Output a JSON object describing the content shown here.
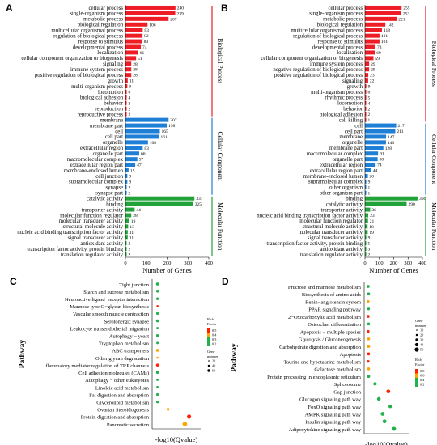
{
  "chart_data": [
    {
      "panel_letter": "A",
      "type": "bar",
      "orientation": "horizontal",
      "xlabel": "Number of Genes",
      "xlim": [
        0,
        400
      ],
      "xticks": [
        0,
        100,
        200,
        300,
        400
      ],
      "groups": [
        {
          "name": "Biological Process",
          "color": "#ee1c25",
          "categories": [
            "cellular process",
            "single-organism process",
            "metabolic process",
            "biological regulation",
            "multicellular organismal process",
            "regulation of biological process",
            "response to stimulus",
            "developmental process",
            "localization",
            "cellular component organization or biogenesis",
            "signaling",
            "immune system process",
            "positive regulation of biological process",
            "growth",
            "multi-organism process",
            "locomotion",
            "biological adhesion",
            "behavior",
            "reproduction",
            "reproductive process"
          ],
          "values": [
            240,
            239,
            207,
            106,
            83,
            82,
            80,
            74,
            61,
            51,
            28,
            28,
            28,
            11,
            9,
            6,
            4,
            2,
            2,
            2
          ]
        },
        {
          "name": "Cellular Component",
          "color": "#1e7fd7",
          "categories": [
            "membrane",
            "membrane part",
            "cell",
            "cell part",
            "organelle",
            "extracellular region",
            "organelle part",
            "macromolecular complex",
            "extracellular region part",
            "membrane-enclosed lumen",
            "cell junction",
            "supramolecular complex",
            "synapse",
            "synapse part"
          ],
          "values": [
            207,
            198,
            165,
            161,
            108,
            83,
            66,
            57,
            47,
            15,
            9,
            9,
            2,
            2
          ]
        },
        {
          "name": "Molecular Function",
          "color": "#21a33a",
          "categories": [
            "catalytic activity",
            "binding",
            "transporter activity",
            "molecular function regulator",
            "molecular transducer activity",
            "structural molecule activity",
            "nucleic acid binding transcription factor activity",
            "signal transducer activity",
            "antioxidant activity",
            "transcription factor activity, protein binding",
            "translation regulator activity"
          ],
          "values": [
            331,
            325,
            44,
            28,
            19,
            13,
            11,
            11,
            2,
            2,
            2
          ]
        }
      ]
    },
    {
      "panel_letter": "B",
      "type": "bar",
      "orientation": "horizontal",
      "xlabel": "Number of Genes",
      "xlim": [
        0,
        400
      ],
      "xticks": [
        0,
        100,
        200,
        300,
        400
      ],
      "groups": [
        {
          "name": "Biological Process",
          "color": "#ee1c25",
          "categories": [
            "cellular process",
            "single-organism process",
            "metabolic process",
            "biological regulation",
            "multicellular organismal process",
            "regulation of biological process",
            "response to stimulus",
            "developmental process",
            "localization",
            "cellular component organization or biogenesis",
            "immune system process",
            "negative regulation of biological process",
            "positive regulation of biological process",
            "signaling",
            "growth",
            "multi-organism process",
            "rhythmic process",
            "locomotion",
            "behavior",
            "biological adhesion",
            "cell killing"
          ],
          "values": [
            255,
            253,
            221,
            142,
            118,
            101,
            101,
            73,
            69,
            59,
            29,
            29,
            23,
            22,
            9,
            6,
            5,
            4,
            2,
            2,
            1
          ]
        },
        {
          "name": "Cellular Component",
          "color": "#1e7fd7",
          "categories": [
            "cell",
            "cell part",
            "membrane",
            "organelle",
            "membrane part",
            "macromolecular complex",
            "organelle part",
            "extracellular region",
            "extracellular region part",
            "membrane-enclosed lumen",
            "supramolecular complex",
            "other organism",
            "other organism part"
          ],
          "values": [
            217,
            211,
            147,
            146,
            128,
            91,
            88,
            74,
            44,
            20,
            9,
            1,
            1
          ]
        },
        {
          "name": "Molecular Function",
          "color": "#21a33a",
          "categories": [
            "binding",
            "catalytic activity",
            "transporter activity",
            "nucleic acid binding transcription factor activity",
            "molecular function regulator",
            "structural molecule activity",
            "molecular transducer activity",
            "signal transducer activity",
            "transcription factor activity, protein binding",
            "antioxidant activity",
            "translation regulator activity"
          ],
          "values": [
            366,
            290,
            36,
            23,
            21,
            18,
            19,
            9,
            5,
            3,
            2
          ]
        }
      ]
    },
    {
      "panel_letter": "C",
      "type": "scatter",
      "ylabel": "Pathway",
      "xlabel": "-log10(Qvalue)",
      "legend": {
        "rich_factor_title": [
          "Rich",
          "Factor"
        ],
        "rich_factor_ticks": [
          "0.5",
          "0.4",
          "0.3",
          "0.2"
        ],
        "gene_number_title": [
          "Gene",
          "number"
        ],
        "gene_number_ticks": [
          "20",
          "40",
          "60"
        ]
      },
      "color_scale": [
        "#22b14c",
        "#ffa500",
        "#ff2200"
      ],
      "categories": [
        "Tight junction",
        "Starch and sucrose metabolism",
        "Neuroactive ligand−receptor interaction",
        "Mannose type O−glycan biosynthesis",
        "Vascular smooth muscle contraction",
        "Serotonergic synapse",
        "Leukocyte transendothelial migration",
        "Autophagy − yeast",
        "Tryptophan metabolism",
        "ABC transporters",
        "Other glycan degradation",
        "flammatory mediator regulation of TRP channels",
        "Cell adhesion molecules (CAMs)",
        "Autophagy − other eukaryotes",
        "Linoleic acid metabolism",
        "Fat digestion and absorption",
        "Glycerolipid metabolism",
        "Ovarian Steroidogenesis",
        "Protein digestion and absorption",
        "Pancreatic secretion"
      ],
      "points": [
        {
          "q": 0.05,
          "rich": 0.25,
          "genes": 6
        },
        {
          "q": 0.05,
          "rich": 0.3,
          "genes": 4
        },
        {
          "q": 0.05,
          "rich": 0.2,
          "genes": 5
        },
        {
          "q": 0.05,
          "rich": 0.45,
          "genes": 3
        },
        {
          "q": 0.05,
          "rich": 0.25,
          "genes": 5
        },
        {
          "q": 0.05,
          "rich": 0.25,
          "genes": 6
        },
        {
          "q": 0.05,
          "rich": 0.3,
          "genes": 4
        },
        {
          "q": 0.05,
          "rich": 0.3,
          "genes": 5
        },
        {
          "q": 0.05,
          "rich": 0.3,
          "genes": 4
        },
        {
          "q": 0.05,
          "rich": 0.35,
          "genes": 6
        },
        {
          "q": 0.05,
          "rich": 0.4,
          "genes": 3
        },
        {
          "q": 0.05,
          "rich": 0.5,
          "genes": 6
        },
        {
          "q": 0.05,
          "rich": 0.2,
          "genes": 6
        },
        {
          "q": 0.05,
          "rich": 0.25,
          "genes": 4
        },
        {
          "q": 0.05,
          "rich": 0.3,
          "genes": 4
        },
        {
          "q": 0.05,
          "rich": 0.3,
          "genes": 5
        },
        {
          "q": 0.05,
          "rich": 0.3,
          "genes": 5
        },
        {
          "q": 0.3,
          "rich": 0.4,
          "genes": 5
        },
        {
          "q": 0.8,
          "rich": 0.5,
          "genes": 12
        },
        {
          "q": 0.7,
          "rich": 0.4,
          "genes": 14
        }
      ]
    },
    {
      "panel_letter": "D",
      "type": "scatter",
      "ylabel": "Pathway",
      "xlabel": "-log10(Qvalue)",
      "legend": {
        "gene_number_title": [
          "Gene",
          "number"
        ],
        "gene_number_ticks": [
          "10",
          "20",
          "30",
          "40",
          "50"
        ],
        "rich_factor_title": [
          "Rich",
          "Factor"
        ],
        "rich_factor_ticks": [
          "0.8",
          "0.6",
          "0.4",
          "0.2"
        ]
      },
      "color_scale": [
        "#22b14c",
        "#ffa500",
        "#ff2200"
      ],
      "categories": [
        "Fructose and mannose metabolism",
        "Biosynthesis of amino acids",
        "Renin−angiotensin system",
        "PPAR signaling pathway",
        "2−Oxocarboxylic acid metabolism",
        "Osteoclast differentiation",
        "Apoptosis − multiple species",
        "Glycolysis / Gluconeogenesis",
        "Carbohydrate digestion and absorption",
        "Apoptosis",
        "Taurine and hypotaurine metabolism",
        "Galactose metabolism",
        "Protein processing in endoplasmic reticulum",
        "Spliceosome",
        "Gap junction",
        "Glucagon signaling path way",
        "FoxO signaling path way",
        "AMPK signaling path way",
        "Insulin signaling path way",
        "Adipocytokine signaling path way"
      ],
      "points": [
        {
          "q": 0.02,
          "rich": 0.3,
          "genes": 6
        },
        {
          "q": 0.03,
          "rich": 0.25,
          "genes": 6
        },
        {
          "q": 0.02,
          "rich": 0.4,
          "genes": 5
        },
        {
          "q": 0.03,
          "rich": 0.3,
          "genes": 5
        },
        {
          "q": 0.02,
          "rich": 0.45,
          "genes": 6
        },
        {
          "q": 0.03,
          "rich": 0.3,
          "genes": 6
        },
        {
          "q": 0.02,
          "rich": 0.7,
          "genes": 5
        },
        {
          "q": 0.03,
          "rich": 0.4,
          "genes": 6
        },
        {
          "q": 0.03,
          "rich": 0.35,
          "genes": 6
        },
        {
          "q": 0.03,
          "rich": 0.45,
          "genes": 6
        },
        {
          "q": 0.02,
          "rich": 0.55,
          "genes": 5
        },
        {
          "q": 0.03,
          "rich": 0.4,
          "genes": 6
        },
        {
          "q": 0.03,
          "rich": 0.3,
          "genes": 7
        },
        {
          "q": 0.2,
          "rich": 0.25,
          "genes": 8
        },
        {
          "q": 0.55,
          "rich": 0.5,
          "genes": 10
        },
        {
          "q": 0.3,
          "rich": 0.3,
          "genes": 9
        },
        {
          "q": 0.6,
          "rich": 0.3,
          "genes": 9
        },
        {
          "q": 0.4,
          "rich": 0.3,
          "genes": 10
        },
        {
          "q": 0.45,
          "rich": 0.3,
          "genes": 10
        },
        {
          "q": 0.7,
          "rich": 0.3,
          "genes": 11
        }
      ]
    }
  ]
}
